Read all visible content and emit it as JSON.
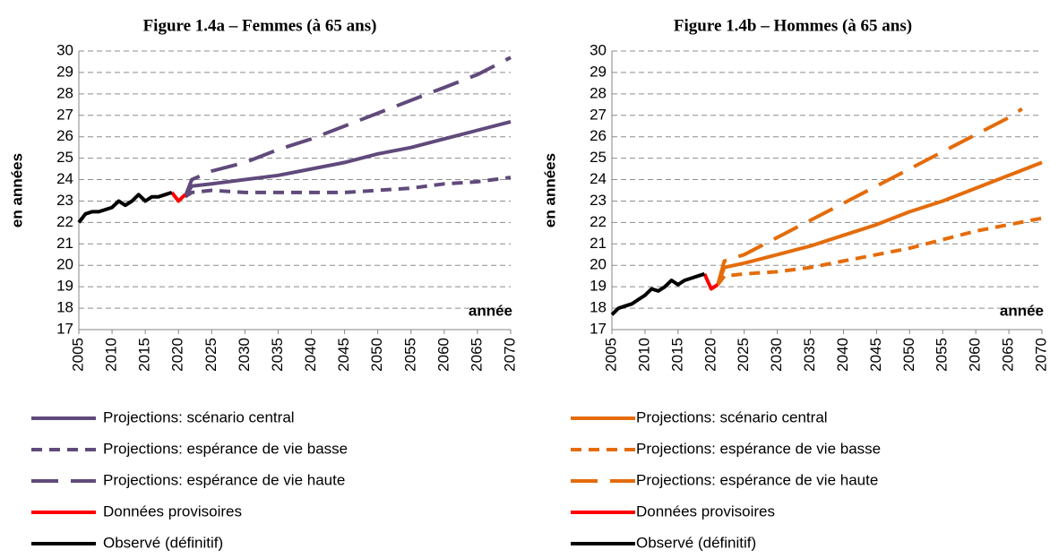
{
  "chart_data": [
    {
      "type": "line",
      "title": "Figure 1.4a – Femmes (à 65 ans)",
      "y_label": "en années",
      "x_label": "année",
      "xlim": [
        2005,
        2070
      ],
      "xticks": [
        2005,
        2010,
        2015,
        2020,
        2025,
        2030,
        2035,
        2040,
        2045,
        2050,
        2055,
        2060,
        2065,
        2070
      ],
      "ylim": [
        17,
        30
      ],
      "yticks": [
        17,
        18,
        19,
        20,
        21,
        22,
        23,
        24,
        25,
        26,
        27,
        28,
        29,
        30
      ],
      "grid": true,
      "series": [
        {
          "name": "Projections: scénario central",
          "color": "#604a7b",
          "dash": "solid",
          "x": [
            2021,
            2022,
            2025,
            2030,
            2035,
            2040,
            2045,
            2050,
            2055,
            2060,
            2065,
            2070
          ],
          "values": [
            23.2,
            23.7,
            23.8,
            24.0,
            24.2,
            24.5,
            24.8,
            25.2,
            25.5,
            25.9,
            26.3,
            26.7
          ]
        },
        {
          "name": "Projections: espérance de vie basse",
          "color": "#604a7b",
          "dash": "dash",
          "x": [
            2021,
            2022,
            2025,
            2030,
            2035,
            2040,
            2045,
            2050,
            2055,
            2060,
            2065,
            2070
          ],
          "values": [
            23.2,
            23.4,
            23.5,
            23.4,
            23.4,
            23.4,
            23.4,
            23.5,
            23.6,
            23.8,
            23.9,
            24.1
          ]
        },
        {
          "name": "Projections: espérance de vie haute",
          "color": "#604a7b",
          "dash": "longdash",
          "x": [
            2021,
            2022,
            2025,
            2030,
            2035,
            2040,
            2045,
            2050,
            2055,
            2060,
            2065,
            2070
          ],
          "values": [
            23.2,
            24.0,
            24.4,
            24.8,
            25.4,
            25.9,
            26.5,
            27.1,
            27.7,
            28.3,
            28.9,
            29.7
          ]
        },
        {
          "name": "Données provisoires",
          "color": "#ff0000",
          "dash": "solid",
          "x": [
            2019,
            2020,
            2021
          ],
          "values": [
            23.4,
            23.0,
            23.3
          ]
        },
        {
          "name": "Observé (définitif)",
          "color": "#000000",
          "dash": "solid",
          "x": [
            2005,
            2006,
            2007,
            2008,
            2009,
            2010,
            2011,
            2012,
            2013,
            2014,
            2015,
            2016,
            2017,
            2018,
            2019
          ],
          "values": [
            22.0,
            22.4,
            22.5,
            22.5,
            22.6,
            22.7,
            23.0,
            22.8,
            23.0,
            23.3,
            23.0,
            23.2,
            23.2,
            23.3,
            23.4
          ]
        }
      ]
    },
    {
      "type": "line",
      "title": "Figure 1.4b – Hommes (à 65 ans)",
      "y_label": "en années",
      "x_label": "année",
      "xlim": [
        2005,
        2070
      ],
      "xticks": [
        2005,
        2010,
        2015,
        2020,
        2025,
        2030,
        2035,
        2040,
        2045,
        2050,
        2055,
        2060,
        2065,
        2070
      ],
      "ylim": [
        17,
        30
      ],
      "yticks": [
        17,
        18,
        19,
        20,
        21,
        22,
        23,
        24,
        25,
        26,
        27,
        28,
        29,
        30
      ],
      "grid": true,
      "series": [
        {
          "name": "Projections: scénario central",
          "color": "#e46c0a",
          "dash": "solid",
          "x": [
            2021,
            2022,
            2025,
            2030,
            2035,
            2040,
            2045,
            2050,
            2055,
            2060,
            2065,
            2070
          ],
          "values": [
            19.1,
            19.9,
            20.1,
            20.5,
            20.9,
            21.4,
            21.9,
            22.5,
            23.0,
            23.6,
            24.2,
            24.8
          ]
        },
        {
          "name": "Projections: espérance de vie basse",
          "color": "#e46c0a",
          "dash": "dash",
          "x": [
            2021,
            2022,
            2025,
            2030,
            2035,
            2040,
            2045,
            2050,
            2055,
            2060,
            2065,
            2070
          ],
          "values": [
            19.1,
            19.5,
            19.6,
            19.7,
            19.9,
            20.2,
            20.5,
            20.8,
            21.2,
            21.6,
            21.9,
            22.2
          ]
        },
        {
          "name": "Projections: espérance de vie haute",
          "color": "#e46c0a",
          "dash": "longdash",
          "x": [
            2021,
            2022,
            2025,
            2030,
            2035,
            2040,
            2045,
            2050,
            2055,
            2060,
            2065,
            2067
          ],
          "values": [
            19.1,
            20.2,
            20.5,
            21.3,
            22.1,
            22.9,
            23.7,
            24.5,
            25.3,
            26.1,
            26.9,
            27.3
          ]
        },
        {
          "name": "Données provisoires",
          "color": "#ff0000",
          "dash": "solid",
          "x": [
            2019,
            2020,
            2021
          ],
          "values": [
            19.6,
            18.9,
            19.1
          ]
        },
        {
          "name": "Observé (définitif)",
          "color": "#000000",
          "dash": "solid",
          "x": [
            2005,
            2006,
            2007,
            2008,
            2009,
            2010,
            2011,
            2012,
            2013,
            2014,
            2015,
            2016,
            2017,
            2018,
            2019
          ],
          "values": [
            17.7,
            18.0,
            18.1,
            18.2,
            18.4,
            18.6,
            18.9,
            18.8,
            19.0,
            19.3,
            19.1,
            19.3,
            19.4,
            19.5,
            19.6
          ]
        }
      ]
    }
  ]
}
